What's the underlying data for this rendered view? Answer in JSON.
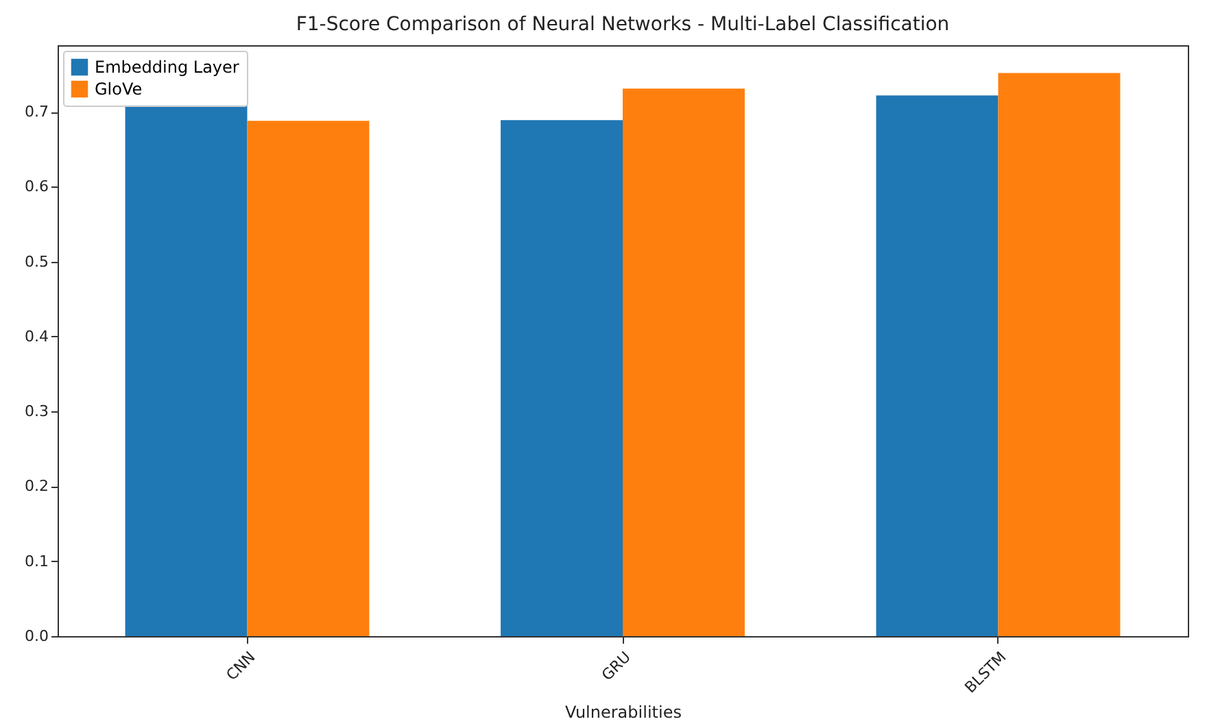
{
  "chart_data": {
    "type": "bar",
    "title": "F1-Score Comparison of Neural Networks - Multi-Label Classification",
    "xlabel": "Vulnerabilities",
    "categories": [
      "CNN",
      "GRU",
      "BLSTM"
    ],
    "series": [
      {
        "name": "Embedding Layer",
        "color": "#1f77b4",
        "values": [
          0.709,
          0.689,
          0.722
        ]
      },
      {
        "name": "GloVe",
        "color": "#ff7f0e",
        "values": [
          0.688,
          0.731,
          0.752
        ]
      }
    ],
    "ylim": [
      0,
      0.789
    ],
    "yticks": [
      {
        "value": 0,
        "label": "0.0"
      },
      0.1,
      0.2,
      0.3,
      0.4,
      0.5,
      0.6,
      0.7
    ],
    "grid": false,
    "legend": "top left"
  }
}
